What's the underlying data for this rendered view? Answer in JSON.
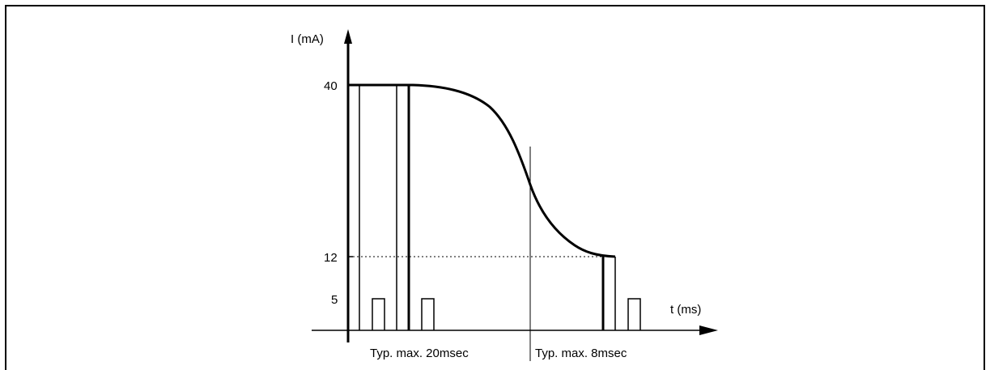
{
  "diagram": {
    "y_axis_label": "I (mA)",
    "x_axis_label": "t (ms)",
    "tick_labels": {
      "level_40": "40",
      "level_12": "12",
      "level_5": "5"
    },
    "interval_labels": {
      "first": "Typ. max. 20msec",
      "second": "Typ. max. 8msec"
    },
    "colors": {
      "line": "#000000",
      "background": "#ffffff"
    }
  }
}
